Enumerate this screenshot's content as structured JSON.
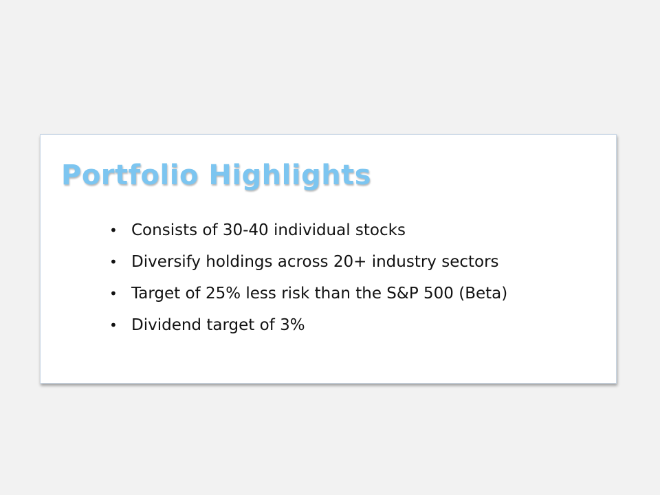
{
  "slide": {
    "title": "Portfolio Highlights",
    "bullets": [
      "Consists of 30-40 individual stocks",
      "Diversify holdings across 20+ industry sectors",
      "Target of 25% less risk than the S&P 500 (Beta)",
      "Dividend target of 3%"
    ],
    "bullet_glyph": "•",
    "colors": {
      "background": "#f2f2f2",
      "card": "#ffffff",
      "title": "#7cc5f0",
      "text": "#111111"
    }
  }
}
